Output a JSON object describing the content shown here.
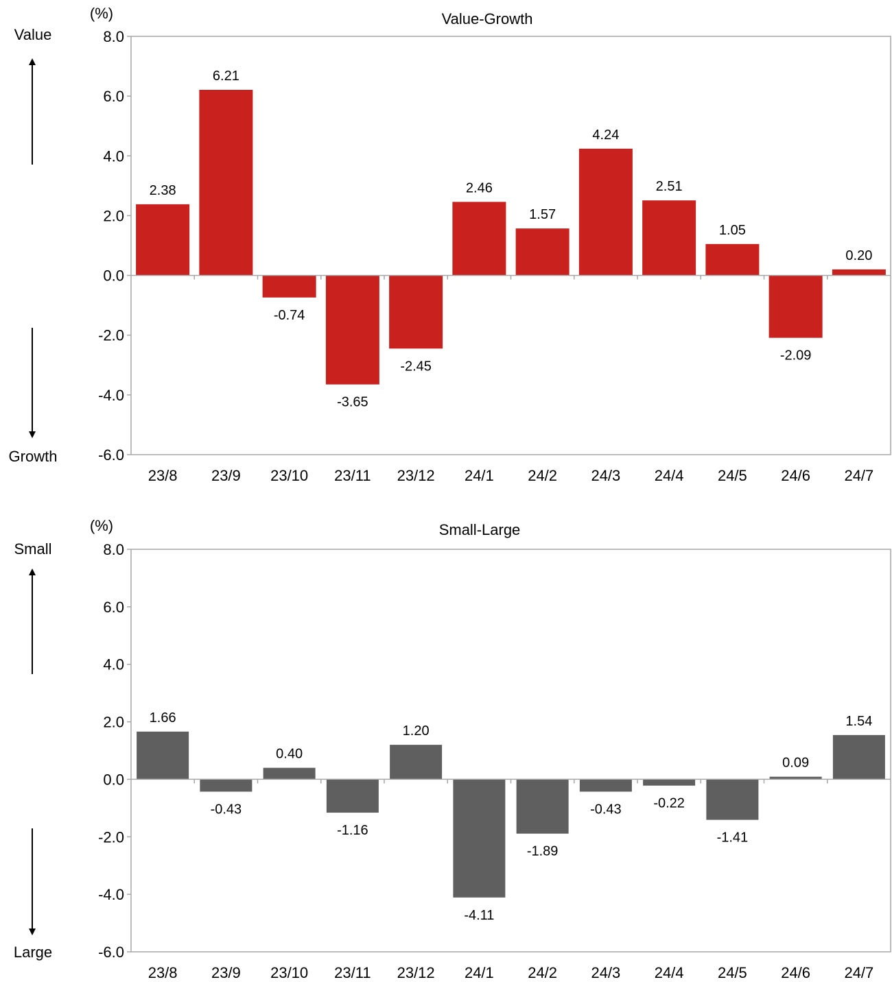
{
  "colors": {
    "bar_top": "#c8211e",
    "bar_bottom": "#5f5f5f",
    "axis": "#a6a6a6",
    "text": "#000000"
  },
  "chart_data": [
    {
      "type": "bar",
      "title": "Value-Growth",
      "unit_label": "(%)",
      "direction_labels": {
        "positive": "Value",
        "negative": "Growth"
      },
      "categories": [
        "23/8",
        "23/9",
        "23/10",
        "23/11",
        "23/12",
        "24/1",
        "24/2",
        "24/3",
        "24/4",
        "24/5",
        "24/6",
        "24/7"
      ],
      "values": [
        2.38,
        6.21,
        -0.74,
        -3.65,
        -2.45,
        2.46,
        1.57,
        4.24,
        2.51,
        1.05,
        -2.09,
        0.2
      ],
      "data_labels": [
        "2.38",
        "6.21",
        "-0.74",
        "-3.65",
        "-2.45",
        "2.46",
        "1.57",
        "4.24",
        "2.51",
        "1.05",
        "-2.09",
        "0.20"
      ],
      "yticks": [
        "8.0",
        "6.0",
        "4.0",
        "2.0",
        "0.0",
        "-2.0",
        "-4.0",
        "-6.0"
      ],
      "ylim": [
        -6,
        8
      ],
      "grid": false,
      "legend": "none"
    },
    {
      "type": "bar",
      "title": "Small-Large",
      "unit_label": "(%)",
      "direction_labels": {
        "positive": "Small",
        "negative": "Large"
      },
      "categories": [
        "23/8",
        "23/9",
        "23/10",
        "23/11",
        "23/12",
        "24/1",
        "24/2",
        "24/3",
        "24/4",
        "24/5",
        "24/6",
        "24/7"
      ],
      "values": [
        1.66,
        -0.43,
        0.4,
        -1.16,
        1.2,
        -4.11,
        -1.89,
        -0.43,
        -0.22,
        -1.41,
        0.09,
        1.54
      ],
      "data_labels": [
        "1.66",
        "-0.43",
        "0.40",
        "-1.16",
        "1.20",
        "-4.11",
        "-1.89",
        "-0.43",
        "-0.22",
        "-1.41",
        "0.09",
        "1.54"
      ],
      "yticks": [
        "8.0",
        "6.0",
        "4.0",
        "2.0",
        "0.0",
        "-2.0",
        "-4.0",
        "-6.0"
      ],
      "ylim": [
        -6,
        8
      ],
      "grid": false,
      "legend": "none"
    }
  ]
}
